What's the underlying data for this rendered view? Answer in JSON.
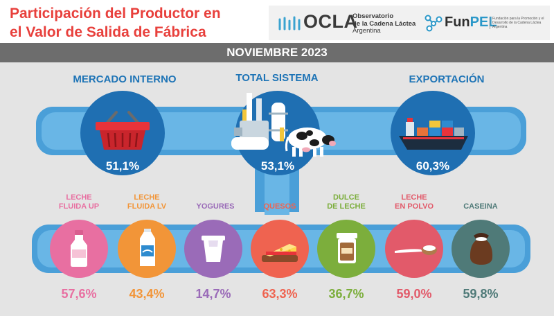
{
  "header": {
    "title_line1": "Participación del Productor en",
    "title_line2": "el Valor de Salida de Fábrica",
    "ocla": {
      "word": "OCLA",
      "sub_line1": "Observatorio",
      "sub_line2": "de la Cadena Láctea",
      "sub_line3": "Argentina"
    },
    "funpel": {
      "word_fun": "Fun",
      "word_pel": "PEL",
      "sub": "Fundación para la Promoción y el Desarrollo de la Cadena Láctea Argentina"
    }
  },
  "banner": {
    "period": "NOVIEMBRE 2023"
  },
  "categories": [
    {
      "title": "MERCADO INTERNO",
      "value": "51,1%",
      "icon": "basket-icon"
    },
    {
      "title": "TOTAL SISTEMA",
      "value": "53,1%",
      "icon": "factory-cow-icon"
    },
    {
      "title": "EXPORTACIÓN",
      "value": "60,3%",
      "icon": "cargo-ship-icon"
    }
  ],
  "products": [
    {
      "line1": "LECHE",
      "line2": "FLUIDA UP",
      "value": "57,6%",
      "color": "#e86fa1",
      "icon": "milk-bottle-icon"
    },
    {
      "line1": "LECHE",
      "line2": "FLUIDA LV",
      "value": "43,4%",
      "color": "#f29538",
      "icon": "milk-carton-icon"
    },
    {
      "line1": "YOGURES",
      "line2": "",
      "value": "14,7%",
      "color": "#9a6bb8",
      "icon": "yogurt-cup-icon"
    },
    {
      "line1": "QUESOS",
      "line2": "",
      "value": "63,3%",
      "color": "#ef6350",
      "icon": "cheese-icon"
    },
    {
      "line1": "DULCE",
      "line2": "DE LECHE",
      "value": "36,7%",
      "color": "#7cae3c",
      "icon": "dulce-jar-icon"
    },
    {
      "line1": "LECHE",
      "line2": "EN POLVO",
      "value": "59,0%",
      "color": "#e25a6a",
      "icon": "powder-spoon-icon"
    },
    {
      "line1": "CASEINA",
      "line2": "",
      "value": "59,8%",
      "color": "#4f7a78",
      "icon": "casein-sack-icon"
    }
  ]
}
